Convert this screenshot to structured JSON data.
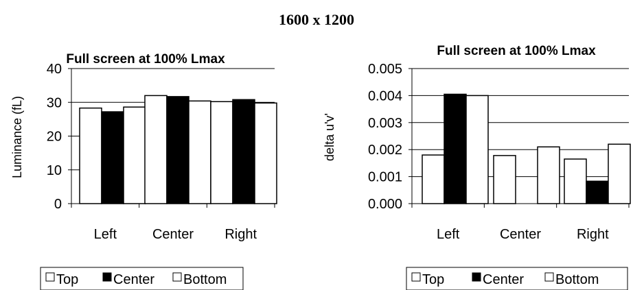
{
  "page_title": "1600 x 1200",
  "chart_data": [
    {
      "type": "bar",
      "title": "Full screen at 100% Lmax",
      "xlabel": "",
      "ylabel": "Luminance (fL)",
      "categories": [
        "Left",
        "Center",
        "Right"
      ],
      "ylim": [
        0,
        40
      ],
      "yticks": [
        "0",
        "10",
        "20",
        "30",
        "40"
      ],
      "grid": true,
      "legend_position": "bottom",
      "series": [
        {
          "name": "Top",
          "color": "#ffffff",
          "values": [
            28.3,
            32.0,
            30.2
          ]
        },
        {
          "name": "Center",
          "color": "#000000",
          "values": [
            27.2,
            31.7,
            30.8
          ]
        },
        {
          "name": "Bottom",
          "color": "#ffffff",
          "values": [
            28.6,
            30.4,
            29.8
          ]
        }
      ]
    },
    {
      "type": "bar",
      "title": "Full screen at 100% Lmax",
      "xlabel": "",
      "ylabel": "delta u'v'",
      "categories": [
        "Left",
        "Center",
        "Right"
      ],
      "ylim": [
        0,
        0.005
      ],
      "yticks": [
        "0.000",
        "0.001",
        "0.002",
        "0.003",
        "0.004",
        "0.005"
      ],
      "grid": true,
      "legend_position": "bottom",
      "series": [
        {
          "name": "Top",
          "color": "#ffffff",
          "values": [
            0.0018,
            0.00178,
            0.00165
          ]
        },
        {
          "name": "Center",
          "color": "#000000",
          "values": [
            0.00405,
            0.0,
            0.00083
          ]
        },
        {
          "name": "Bottom",
          "color": "#ffffff",
          "values": [
            0.004,
            0.0021,
            0.0022
          ]
        }
      ]
    }
  ]
}
